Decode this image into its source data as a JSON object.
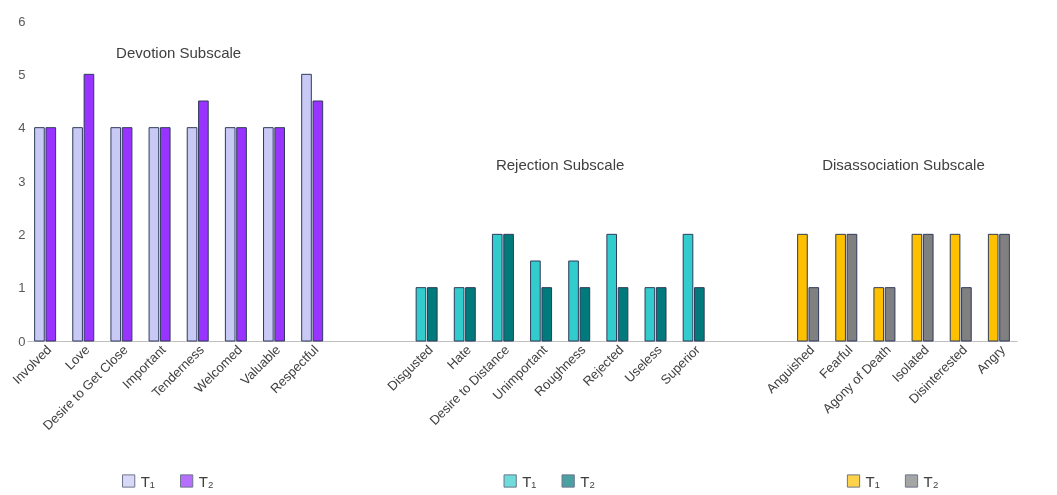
{
  "chart_data": {
    "type": "bar",
    "categories": [
      "Involved",
      "Love",
      "Desire to Get Close",
      "Important",
      "Tenderness",
      "Welcomed",
      "Valuable",
      "Respectful",
      null,
      null,
      "Disgusted",
      "Hate",
      "Desire to Distance",
      "Unimportant",
      "Roughness",
      "Rejected",
      "Useless",
      "Superior",
      null,
      null,
      "Anguished",
      "Fearful",
      "Agony of Death",
      "Isolated",
      "Disinterested",
      "Angry"
    ],
    "series": [
      {
        "name": "T₁",
        "color": "#c9c9f5",
        "values": [
          4,
          4,
          4,
          4,
          4,
          4,
          4,
          5,
          null,
          null,
          null,
          null,
          null,
          null,
          null,
          null,
          null,
          null,
          null,
          null,
          null,
          null,
          null,
          null,
          null,
          null
        ]
      },
      {
        "name": "T₂",
        "color": "#9933ff",
        "values": [
          4,
          5,
          4,
          4,
          4.5,
          4,
          4,
          4.5,
          null,
          null,
          null,
          null,
          null,
          null,
          null,
          null,
          null,
          null,
          null,
          null,
          null,
          null,
          null,
          null,
          null,
          null
        ]
      },
      {
        "name": "T₁",
        "color": "#33cccc",
        "values": [
          null,
          null,
          null,
          null,
          null,
          null,
          null,
          null,
          null,
          null,
          1,
          1,
          2,
          1.5,
          1.5,
          2,
          1,
          2,
          null,
          null,
          null,
          null,
          null,
          null,
          null,
          null
        ]
      },
      {
        "name": "T₂",
        "color": "#007a7a",
        "values": [
          null,
          null,
          null,
          null,
          null,
          null,
          null,
          null,
          null,
          null,
          1,
          1,
          2,
          1,
          1,
          1,
          1,
          1,
          null,
          null,
          null,
          null,
          null,
          null,
          null,
          null
        ]
      },
      {
        "name": "T₁",
        "color": "#ffc000",
        "values": [
          null,
          null,
          null,
          null,
          null,
          null,
          null,
          null,
          null,
          null,
          null,
          null,
          null,
          null,
          null,
          null,
          null,
          null,
          null,
          null,
          2,
          2,
          1,
          2,
          2,
          2
        ]
      },
      {
        "name": "T₂",
        "color": "#808080",
        "values": [
          null,
          null,
          null,
          null,
          null,
          null,
          null,
          null,
          null,
          null,
          null,
          null,
          null,
          null,
          null,
          null,
          null,
          null,
          null,
          null,
          1,
          2,
          1,
          2,
          1,
          2
        ]
      }
    ],
    "annotations": [
      "Devotion Subscale",
      "Rejection Subscale",
      "Disassociation Subscale"
    ],
    "ylim": [
      0,
      6
    ],
    "yticks": [
      0,
      1,
      2,
      3,
      4,
      5,
      6
    ],
    "legend": "bottom"
  }
}
